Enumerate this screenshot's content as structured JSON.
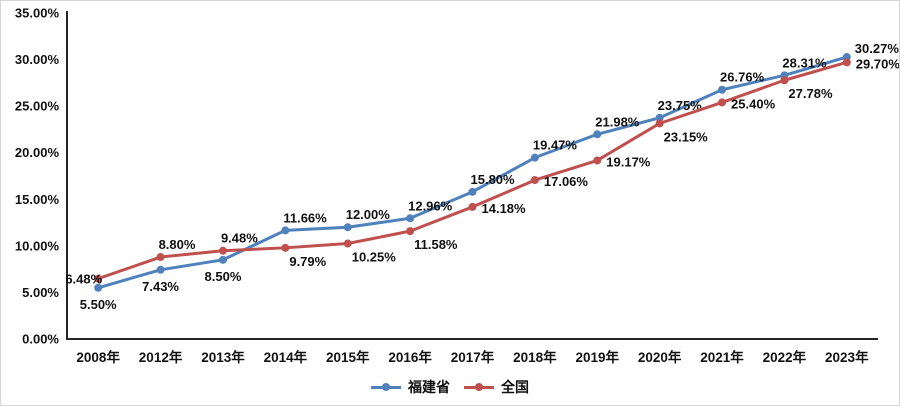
{
  "chart_data": {
    "type": "line",
    "title": "",
    "categories": [
      "2008年",
      "2012年",
      "2013年",
      "2014年",
      "2015年",
      "2016年",
      "2017年",
      "2018年",
      "2019年",
      "2020年",
      "2021年",
      "2022年",
      "2023年"
    ],
    "series": [
      {
        "name": "福建省",
        "color": "#4F81BD",
        "values": [
          5.5,
          7.43,
          8.5,
          11.66,
          12.0,
          12.96,
          15.8,
          19.47,
          21.98,
          23.75,
          26.76,
          28.31,
          30.27
        ],
        "labels": [
          "5.50%",
          "7.43%",
          "8.50%",
          "11.66%",
          "12.00%",
          "12.96%",
          "15.80%",
          "19.47%",
          "21.98%",
          "23.75%",
          "26.76%",
          "28.31%",
          "30.27%"
        ],
        "label_pos": [
          "below",
          "below",
          "below",
          "above",
          "above",
          "above",
          "above",
          "above",
          "above",
          "above",
          "above",
          "above",
          "above-right"
        ]
      },
      {
        "name": "全国",
        "color": "#C0504D",
        "values": [
          6.48,
          8.8,
          9.48,
          9.79,
          10.25,
          11.58,
          14.18,
          17.06,
          19.17,
          23.15,
          25.4,
          27.78,
          29.7
        ],
        "labels": [
          "6.48%",
          "8.80%",
          "9.48%",
          "9.79%",
          "10.25%",
          "11.58%",
          "14.18%",
          "17.06%",
          "19.17%",
          "23.15%",
          "25.40%",
          "27.78%",
          "29.70%"
        ],
        "label_pos": [
          "left",
          "above",
          "above",
          "below-right",
          "below-right",
          "below-right",
          "right",
          "right",
          "right",
          "below-right",
          "right",
          "below-right",
          "right"
        ]
      }
    ],
    "y_axis": {
      "min": 0,
      "max": 35,
      "step": 5,
      "tick_labels": [
        "0.00%",
        "5.00%",
        "10.00%",
        "15.00%",
        "20.00%",
        "25.00%",
        "30.00%",
        "35.00%"
      ]
    },
    "x_axis_label": "",
    "y_axis_label": "",
    "grid": false,
    "legend_position": "bottom",
    "axis_color": "#262626",
    "label_color": "#111111"
  }
}
